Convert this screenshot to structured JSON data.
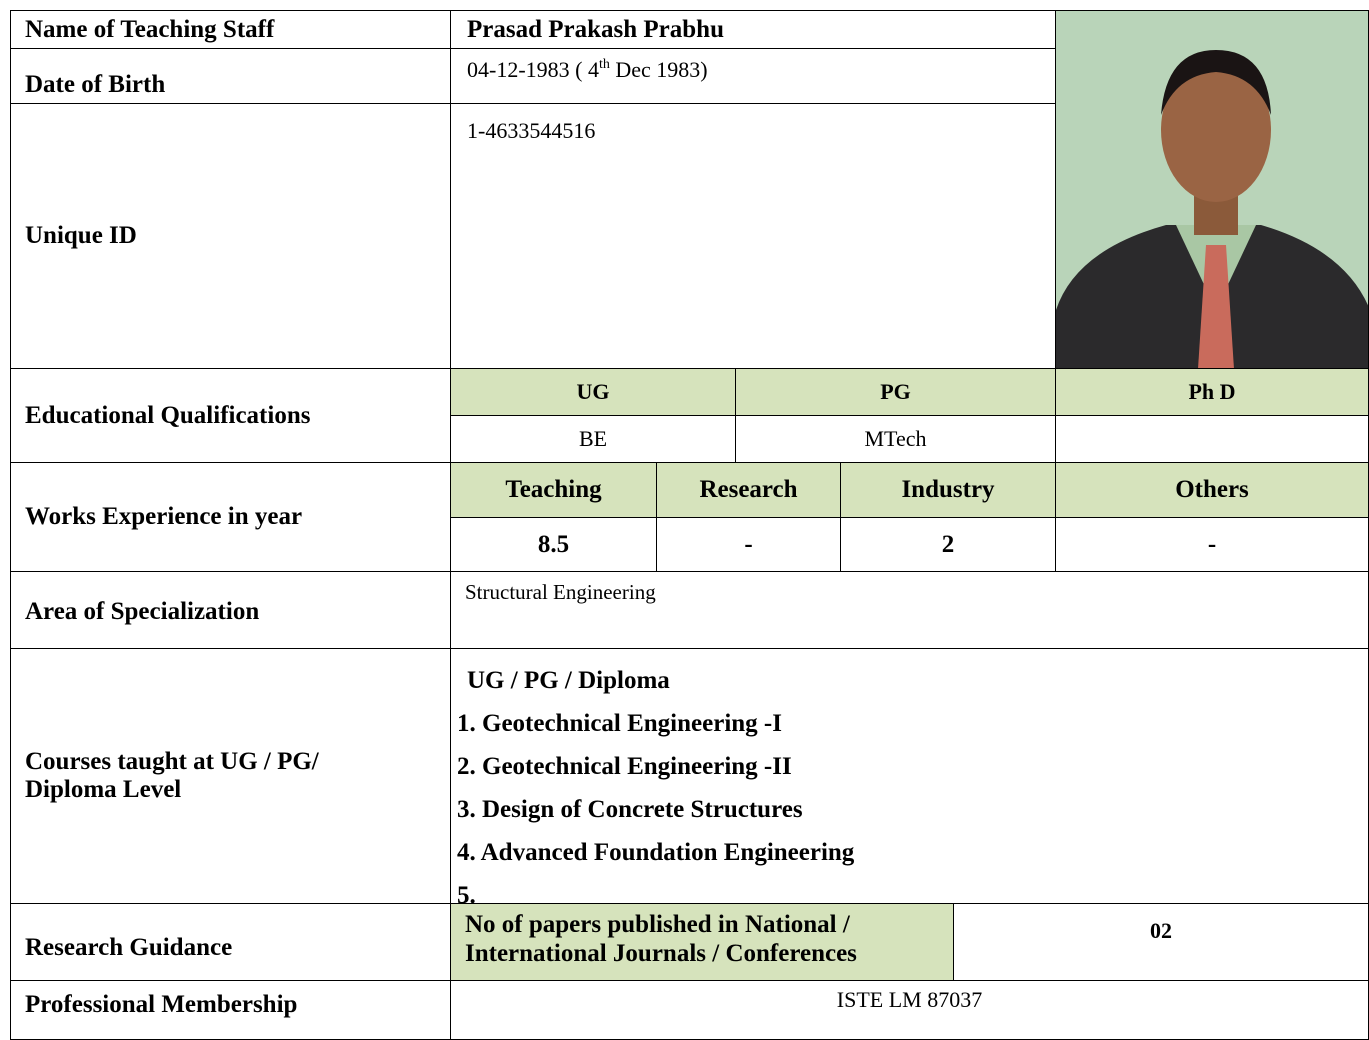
{
  "profile": {
    "name": {
      "label": "Name of Teaching Staff",
      "value": "Prasad Prakash Prabhu"
    },
    "date_of_birth": {
      "label": "Date of Birth",
      "value_parts": [
        "04-12-1983 ( 4",
        "th",
        " Dec 1983)"
      ]
    },
    "unique_id": {
      "label": "Unique ID",
      "value": "1-4633544516"
    },
    "education": {
      "label": "Educational Qualifications",
      "headers": [
        "UG",
        "PG",
        "Ph D"
      ],
      "values": [
        "BE",
        "MTech"
      ]
    },
    "experience": {
      "label": "Works Experience in year",
      "headers": [
        "Teaching",
        "Research",
        "Industry",
        "Others"
      ],
      "values": [
        8.5,
        "-",
        2,
        "-"
      ]
    },
    "specialization": {
      "label": "Area of Specialization",
      "value": "Structural Engineering"
    },
    "courses": {
      "label": "Courses taught at UG / PG/ Diploma Level",
      "heading": "UG / PG / Diploma",
      "items": [
        "1. Geotechnical Engineering -I",
        "2. Geotechnical Engineering -II",
        "3. Design of Concrete Structures",
        "4. Advanced Foundation Engineering",
        "5."
      ]
    },
    "research": {
      "label": "Research Guidance",
      "question": "No of papers published in National / International Journals / Conferences",
      "value": "02"
    },
    "membership": {
      "label": "Professional Membership",
      "value": "ISTE LM 87037"
    }
  }
}
